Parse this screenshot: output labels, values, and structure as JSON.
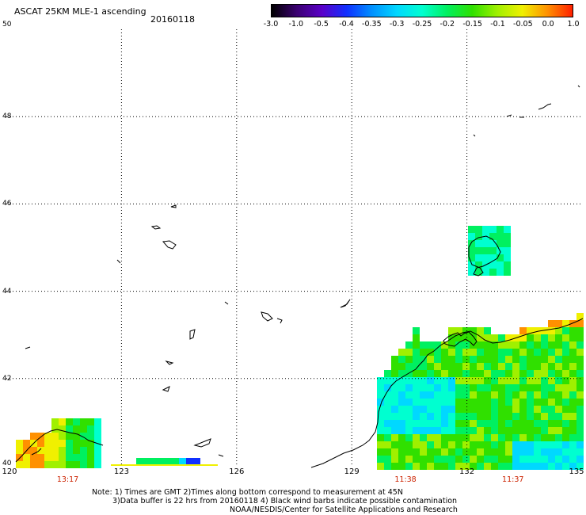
{
  "header": {
    "title": "ASCAT 25KM MLE-1 ascending",
    "date": "20160118"
  },
  "colorbar": {
    "labels": [
      "-3.0",
      "-1.0",
      "-0.5",
      "-0.4",
      "-0.35",
      "-0.3",
      "-0.25",
      "-0.2",
      "-0.15",
      "-0.1",
      "-0.05",
      "0.0",
      "1.0"
    ],
    "colors": [
      "#000000",
      "#3a0070",
      "#5a00c8",
      "#1030ff",
      "#0090ff",
      "#00d8ff",
      "#00ffd0",
      "#00f060",
      "#30e000",
      "#a0f000",
      "#f0f000",
      "#ff9000",
      "#ff2000"
    ]
  },
  "map": {
    "lat_labels": [
      "50",
      "48",
      "46",
      "44",
      "42",
      "40"
    ],
    "lon_labels": [
      "120",
      "123",
      "126",
      "129",
      "132",
      "135"
    ],
    "lat_range": [
      40,
      50
    ],
    "lon_range": [
      120,
      135
    ],
    "grid": "dotted",
    "time_labels": [
      {
        "lon": 121.6,
        "text": "13:17"
      },
      {
        "lon": 130.4,
        "text": "11:38"
      },
      {
        "lon": 133.2,
        "text": "11:37"
      }
    ]
  },
  "notes": {
    "line1": "Note: 1) Times are GMT 2)Times along bottom correspond to measurement at 45N",
    "line2": "3)Data buffer is 22 hrs from 20160118 4) Black wind barbs indicate possible contamination",
    "credit": "NOAA/NESDIS/Center for Satellite Applications and Research"
  }
}
